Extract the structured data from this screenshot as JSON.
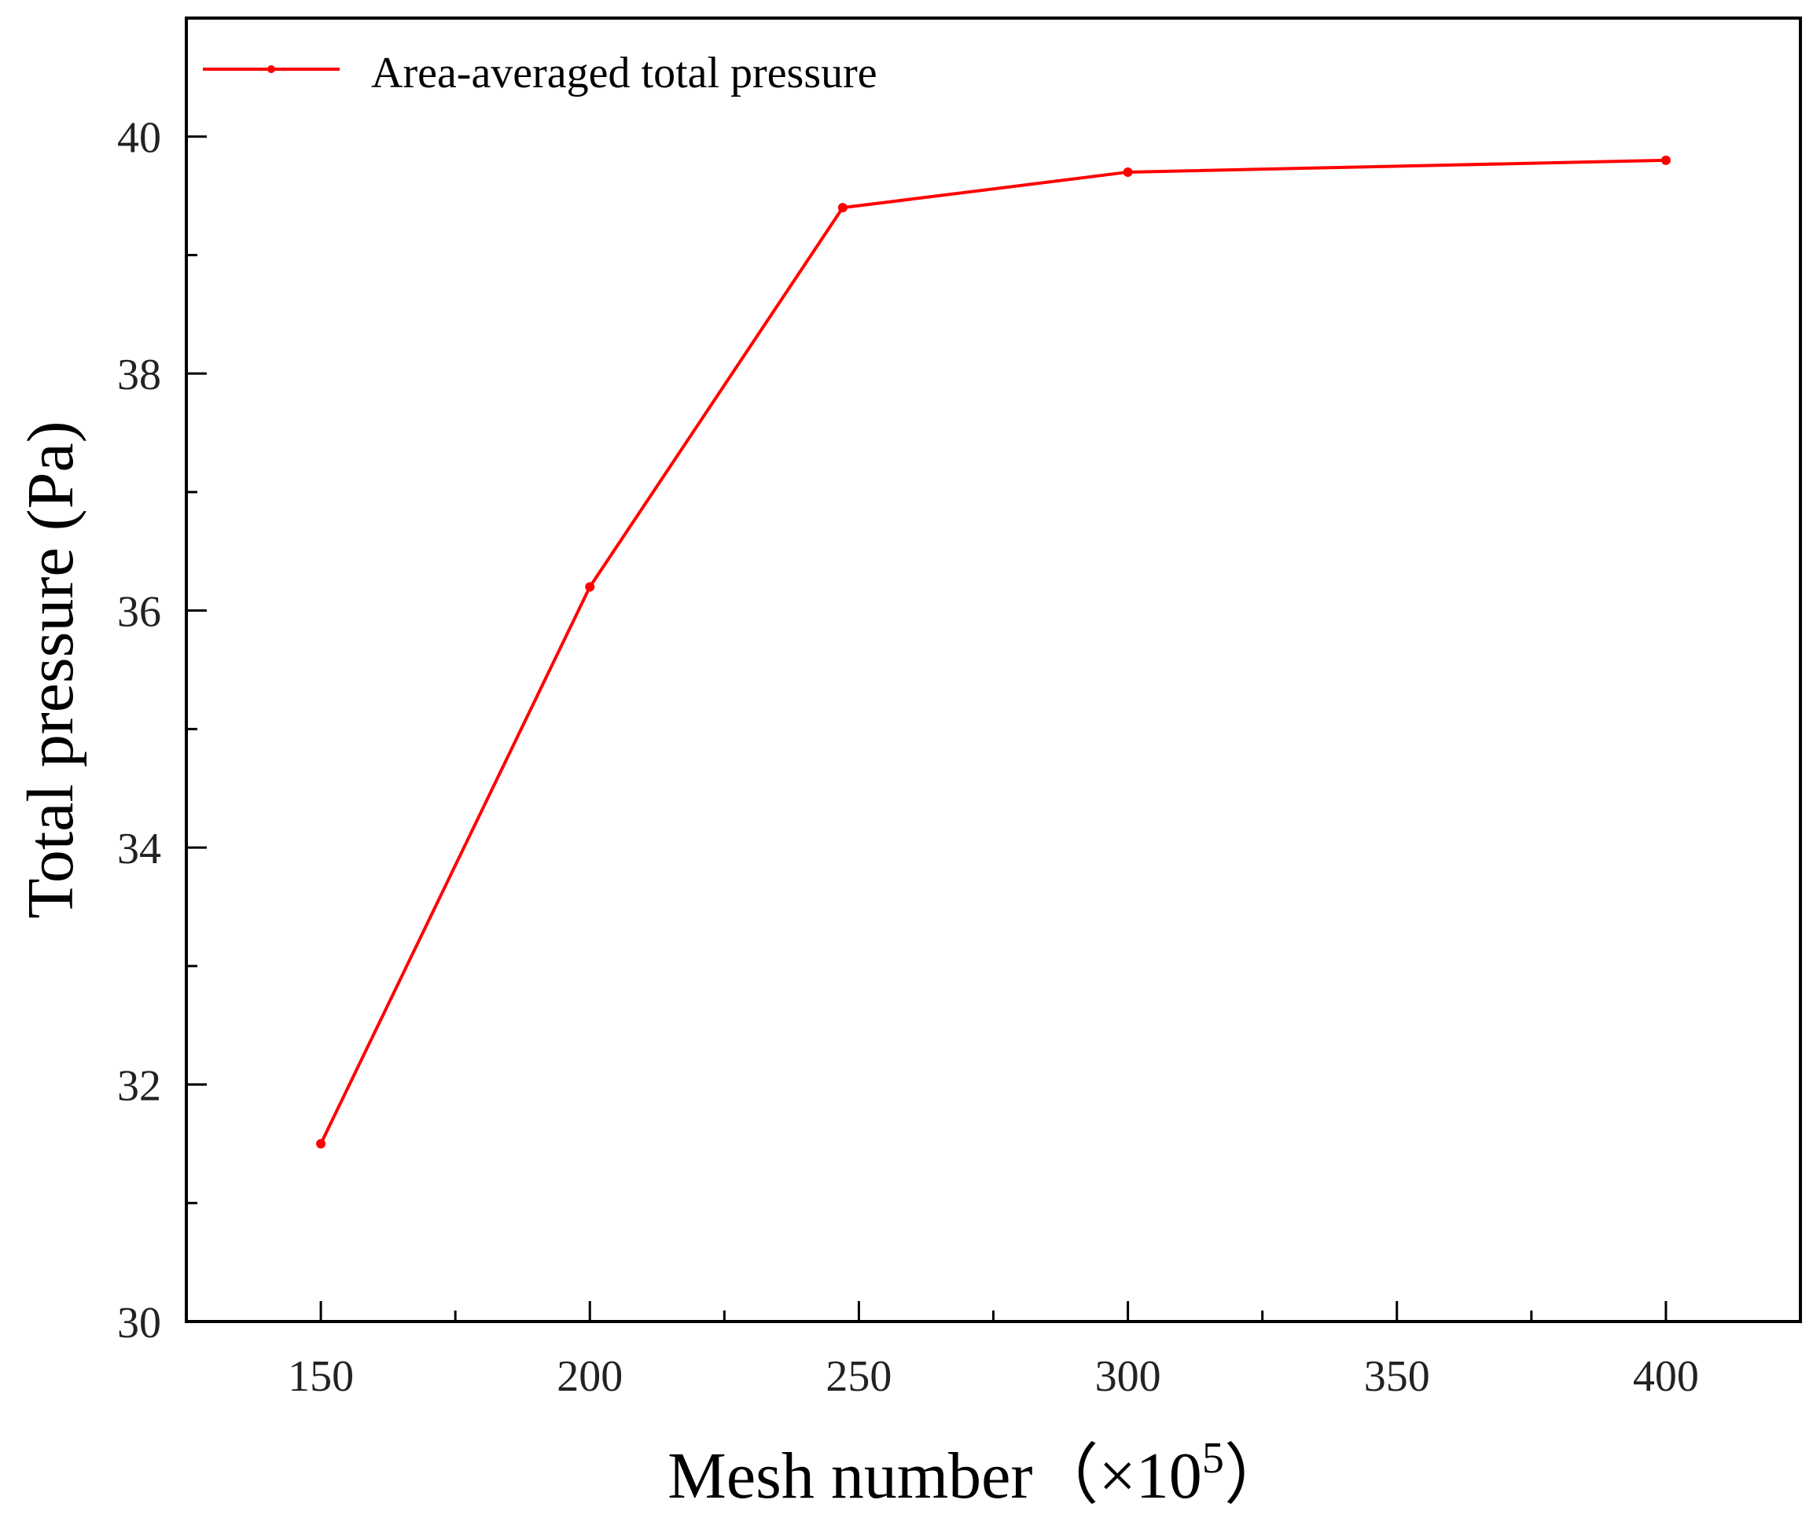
{
  "chart_data": {
    "type": "line",
    "title": "",
    "xlabel": "Mesh number",
    "xlabel_suffix": "（×10",
    "xlabel_exponent": "5",
    "xlabel_close": "）",
    "ylabel": "Total pressure (Pa)",
    "xlim": [
      125,
      425
    ],
    "ylim": [
      30,
      41
    ],
    "x_ticks": [
      150,
      200,
      250,
      300,
      350,
      400
    ],
    "x_minor_ticks": [
      175,
      225,
      275,
      325,
      375
    ],
    "y_ticks": [
      30,
      32,
      34,
      36,
      38,
      40
    ],
    "y_minor_ticks": [
      31,
      33,
      35,
      37,
      39
    ],
    "grid": false,
    "legend_position": "top-left",
    "series": [
      {
        "name": "Area-averaged total pressure",
        "color": "#ff0000",
        "marker": "circle",
        "x": [
          150,
          200,
          247,
          300,
          400
        ],
        "y": [
          31.5,
          36.2,
          39.4,
          39.7,
          39.8
        ]
      }
    ]
  }
}
